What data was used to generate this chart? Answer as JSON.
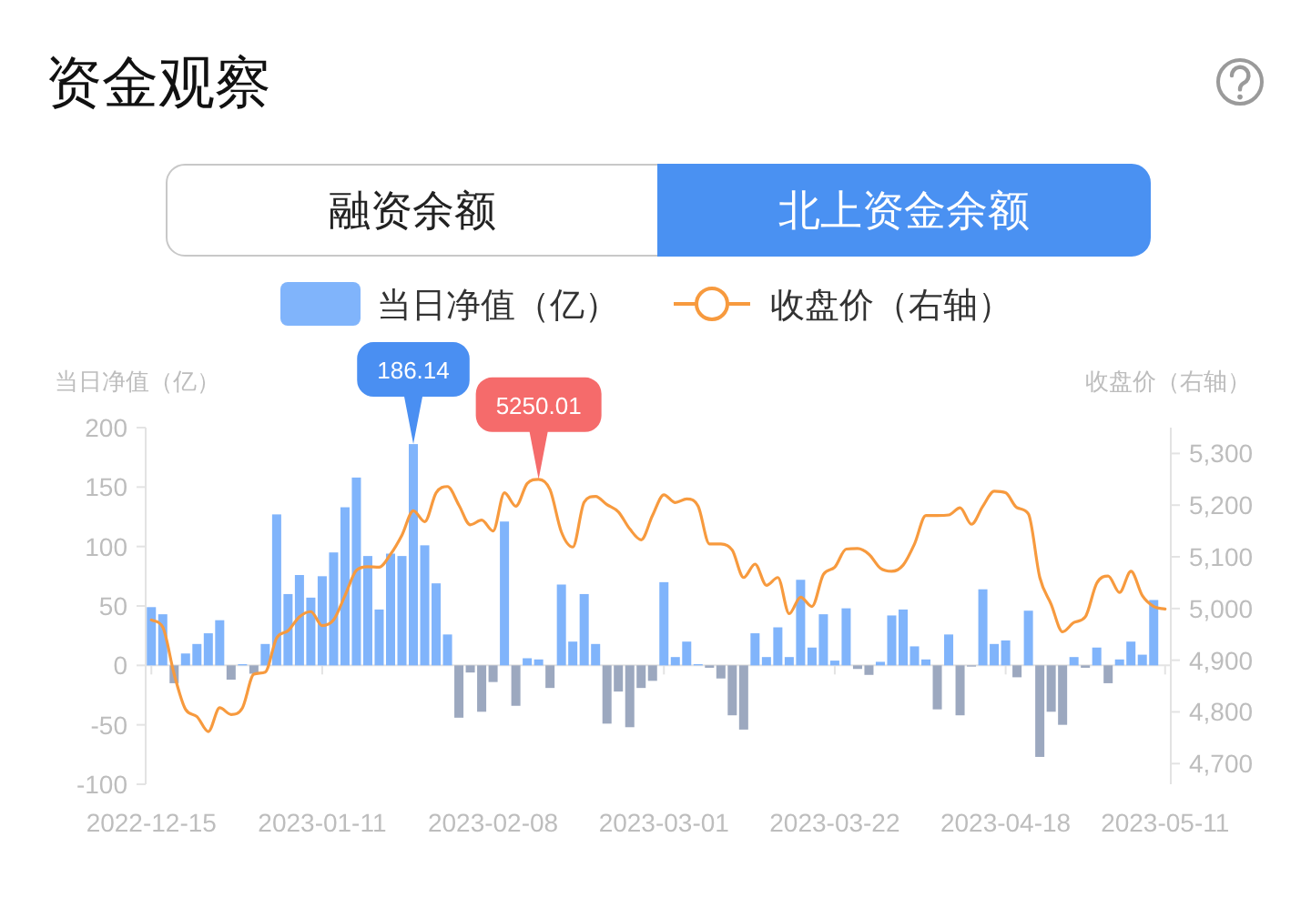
{
  "chart_data": {
    "type": "bar",
    "title": "资金观察",
    "annotations": [
      "融资余额",
      "北上资金余额"
    ],
    "ylabel": "当日净值（亿）",
    "y2label": "收盘价（右轴）",
    "legend": "top",
    "categories": [
      "2022-12-15",
      null,
      null,
      null,
      null,
      null,
      null,
      null,
      null,
      null,
      null,
      null,
      null,
      null,
      null,
      "2023-01-11",
      null,
      null,
      null,
      null,
      null,
      null,
      null,
      null,
      null,
      null,
      null,
      null,
      null,
      null,
      "2023-02-08",
      null,
      null,
      null,
      null,
      null,
      null,
      null,
      null,
      null,
      null,
      null,
      null,
      null,
      null,
      "2023-03-01",
      null,
      null,
      null,
      null,
      null,
      null,
      null,
      null,
      null,
      null,
      null,
      null,
      null,
      null,
      "2023-03-22",
      null,
      null,
      null,
      null,
      null,
      null,
      null,
      null,
      null,
      null,
      null,
      null,
      null,
      null,
      "2023-04-18",
      null,
      null,
      null,
      null,
      null,
      null,
      null,
      null,
      null,
      null,
      null,
      null,
      null,
      "2023-05-11"
    ],
    "ylim": [
      -100,
      200
    ],
    "yticks": [
      -100,
      -50,
      0,
      50,
      100,
      150,
      200
    ],
    "y2lim": [
      4660,
      5350
    ],
    "y2ticks": [
      {
        "value": 4700,
        "label": "4,700"
      },
      {
        "value": 4800,
        "label": "4,800"
      },
      {
        "value": 4900,
        "label": "4,900"
      },
      {
        "value": 5000,
        "label": "5,000"
      },
      {
        "value": 5100,
        "label": "5,100"
      },
      {
        "value": 5200,
        "label": "5,200"
      },
      {
        "value": 5300,
        "label": "5,300"
      }
    ],
    "series": [
      {
        "name": "当日净值（亿）",
        "type": "bar",
        "color": "#80b4fb",
        "values": [
          49,
          43,
          -15,
          10,
          18,
          27,
          38,
          -12,
          1,
          -7,
          18,
          127,
          60,
          76,
          57,
          75,
          95,
          133,
          158,
          92,
          47,
          94,
          92,
          186.14,
          101,
          69,
          26,
          -44,
          -6,
          -39,
          -14,
          121,
          -34,
          6,
          5,
          -19,
          68,
          20,
          60,
          18,
          -49,
          -22,
          -52,
          -19,
          -13,
          70,
          7,
          20,
          1,
          -2,
          -11,
          -42,
          -54,
          27,
          7,
          32,
          7,
          72,
          15,
          43,
          4,
          48,
          -3,
          -8,
          3,
          42,
          47,
          16,
          5,
          -37,
          26,
          -42,
          -1,
          64,
          18,
          21,
          -10,
          46,
          -77,
          -39,
          -50,
          7,
          -2,
          15,
          -15,
          5,
          20,
          9,
          55,
          null
        ],
        "colors": [
          "#80b4fb",
          "#80b4fb",
          "#9ca8bf",
          "#80b4fb",
          "#80b4fb",
          "#80b4fb",
          "#80b4fb",
          "#9ca8bf",
          "#80b4fb",
          "#9ca8bf",
          "#80b4fb",
          "#80b4fb",
          "#80b4fb",
          "#80b4fb",
          "#80b4fb",
          "#80b4fb",
          "#80b4fb",
          "#80b4fb",
          "#80b4fb",
          "#80b4fb",
          "#80b4fb",
          "#80b4fb",
          "#80b4fb",
          "#80b4fb",
          "#80b4fb",
          "#80b4fb",
          "#80b4fb",
          "#9ca8bf",
          "#9ca8bf",
          "#9ca8bf",
          "#9ca8bf",
          "#80b4fb",
          "#9ca8bf",
          "#80b4fb",
          "#80b4fb",
          "#9ca8bf",
          "#80b4fb",
          "#80b4fb",
          "#80b4fb",
          "#80b4fb",
          "#9ca8bf",
          "#9ca8bf",
          "#9ca8bf",
          "#9ca8bf",
          "#9ca8bf",
          "#80b4fb",
          "#80b4fb",
          "#80b4fb",
          "#80b4fb",
          "#9ca8bf",
          "#9ca8bf",
          "#9ca8bf",
          "#9ca8bf",
          "#80b4fb",
          "#80b4fb",
          "#80b4fb",
          "#80b4fb",
          "#80b4fb",
          "#80b4fb",
          "#80b4fb",
          "#80b4fb",
          "#80b4fb",
          "#9ca8bf",
          "#9ca8bf",
          "#80b4fb",
          "#80b4fb",
          "#80b4fb",
          "#80b4fb",
          "#80b4fb",
          "#9ca8bf",
          "#80b4fb",
          "#9ca8bf",
          "#9ca8bf",
          "#80b4fb",
          "#80b4fb",
          "#80b4fb",
          "#9ca8bf",
          "#80b4fb",
          "#9ca8bf",
          "#9ca8bf",
          "#9ca8bf",
          "#80b4fb",
          "#9ca8bf",
          "#80b4fb",
          "#9ca8bf",
          "#80b4fb",
          "#80b4fb",
          "#80b4fb",
          "#80b4fb",
          null
        ],
        "value_labels": [
          null,
          null,
          null,
          null,
          null,
          null,
          null,
          null,
          null,
          null,
          null,
          null,
          null,
          null,
          null,
          null,
          null,
          null,
          null,
          null,
          null,
          null,
          null,
          "186.14",
          null,
          null,
          null,
          null,
          null,
          null,
          null,
          null,
          null,
          null,
          null,
          null,
          null,
          null,
          null,
          null,
          null,
          null,
          null,
          null,
          null,
          null,
          null,
          null,
          null,
          null,
          null,
          null,
          null,
          null,
          null,
          null,
          null,
          null,
          null,
          null,
          null,
          null,
          null,
          null,
          null,
          null,
          null,
          null,
          null,
          null,
          null,
          null,
          null,
          null,
          null,
          null,
          null,
          null,
          null,
          null,
          null,
          null,
          null,
          null,
          null,
          null,
          null,
          null,
          null,
          null
        ]
      },
      {
        "name": "收盘价（右轴）",
        "type": "line",
        "axis": "y2",
        "color": "#f79a3e",
        "values": [
          4978,
          4964,
          4873,
          4805,
          4791,
          4762,
          4808,
          4795,
          4808,
          4873,
          4877,
          4943,
          4957,
          4984,
          4994,
          4967,
          4978,
          5025,
          5074,
          5081,
          5080,
          5105,
          5142,
          5189,
          5168,
          5224,
          5236,
          5200,
          5162,
          5171,
          5150,
          5224,
          5198,
          5242,
          5250.01,
          5230,
          5148,
          5119,
          5206,
          5217,
          5201,
          5187,
          5154,
          5133,
          5180,
          5220,
          5205,
          5212,
          5198,
          5125,
          5125,
          5113,
          5060,
          5086,
          5045,
          5060,
          4990,
          5022,
          5004,
          5066,
          5080,
          5115,
          5116,
          5105,
          5078,
          5072,
          5084,
          5125,
          5180,
          5180,
          5181,
          5195,
          5163,
          5198,
          5227,
          5224,
          5195,
          5183,
          5060,
          5008,
          4955,
          4973,
          4984,
          5049,
          5063,
          5031,
          5072,
          5025,
          5004,
          4999
        ],
        "value_labels": [
          null,
          null,
          null,
          null,
          null,
          null,
          null,
          null,
          null,
          null,
          null,
          null,
          null,
          null,
          null,
          null,
          null,
          null,
          null,
          null,
          null,
          null,
          null,
          null,
          null,
          null,
          null,
          null,
          null,
          null,
          null,
          null,
          null,
          null,
          "5250.01",
          null,
          null,
          null,
          null,
          null,
          null,
          null,
          null,
          null,
          null,
          null,
          null,
          null,
          null,
          null,
          null,
          null,
          null,
          null,
          null,
          null,
          null,
          null,
          null,
          null,
          null,
          null,
          null,
          null,
          null,
          null,
          null,
          null,
          null,
          null,
          null,
          null,
          null,
          null,
          null,
          null,
          null,
          null,
          null,
          null,
          null,
          null,
          null,
          null,
          null,
          null,
          null,
          null,
          null,
          null
        ]
      }
    ]
  }
}
